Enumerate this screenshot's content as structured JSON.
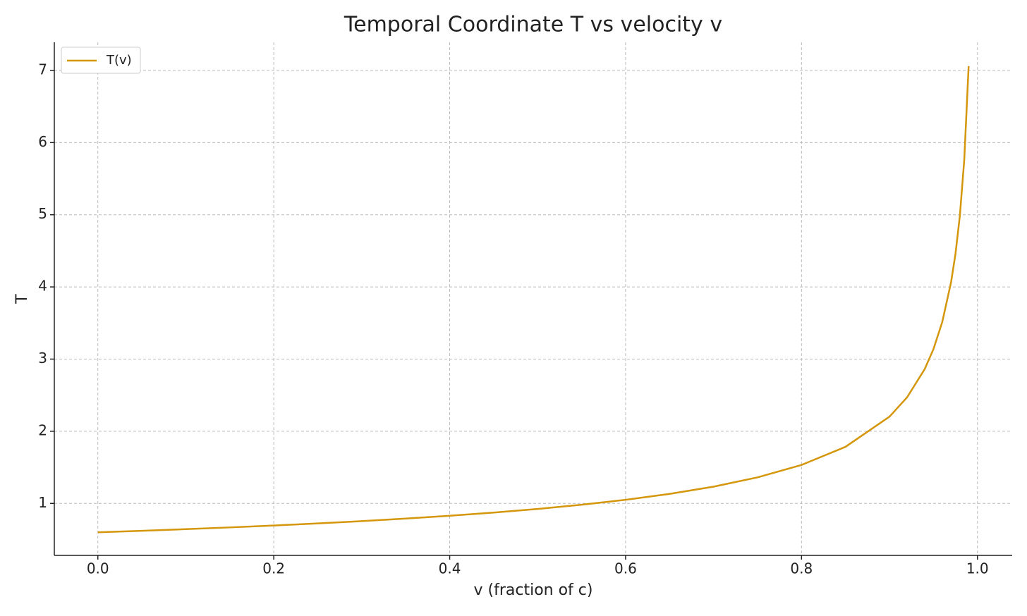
{
  "chart_data": {
    "type": "line",
    "title": "Temporal Coordinate T vs velocity v",
    "xlabel": "v (fraction of c)",
    "ylabel": "T",
    "x": [
      0,
      0.05,
      0.1,
      0.15,
      0.2,
      0.25,
      0.3,
      0.35,
      0.4,
      0.45,
      0.5,
      0.55,
      0.6,
      0.65,
      0.7,
      0.75,
      0.8,
      0.85,
      0.9,
      0.92,
      0.94,
      0.95,
      0.96,
      0.97,
      0.975,
      0.98,
      0.985,
      0.99
    ],
    "series": [
      {
        "name": "T(v)",
        "color": "#d4960b",
        "values": [
          0.6,
          0.6208,
          0.6432,
          0.6676,
          0.694,
          0.723,
          0.7548,
          0.79,
          0.8292,
          0.8734,
          0.9238,
          0.9818,
          1.05,
          1.1317,
          1.2322,
          1.3607,
          1.5333,
          1.7844,
          2.2024,
          2.4699,
          2.8607,
          3.1385,
          3.5143,
          4.0642,
          4.4554,
          4.9849,
          5.7607,
          7.0603
        ]
      }
    ],
    "xlim": [
      -0.0495,
      1.0395
    ],
    "ylim": [
      0.28,
      7.39
    ],
    "xticks": [
      {
        "value": 0,
        "label": "0.0"
      },
      0.2,
      0.4,
      0.6,
      0.8,
      {
        "value": 1,
        "label": "1.0"
      }
    ],
    "yticks": [
      1,
      2,
      3,
      4,
      5,
      6,
      7
    ],
    "grid": true,
    "legend": "upper left"
  }
}
